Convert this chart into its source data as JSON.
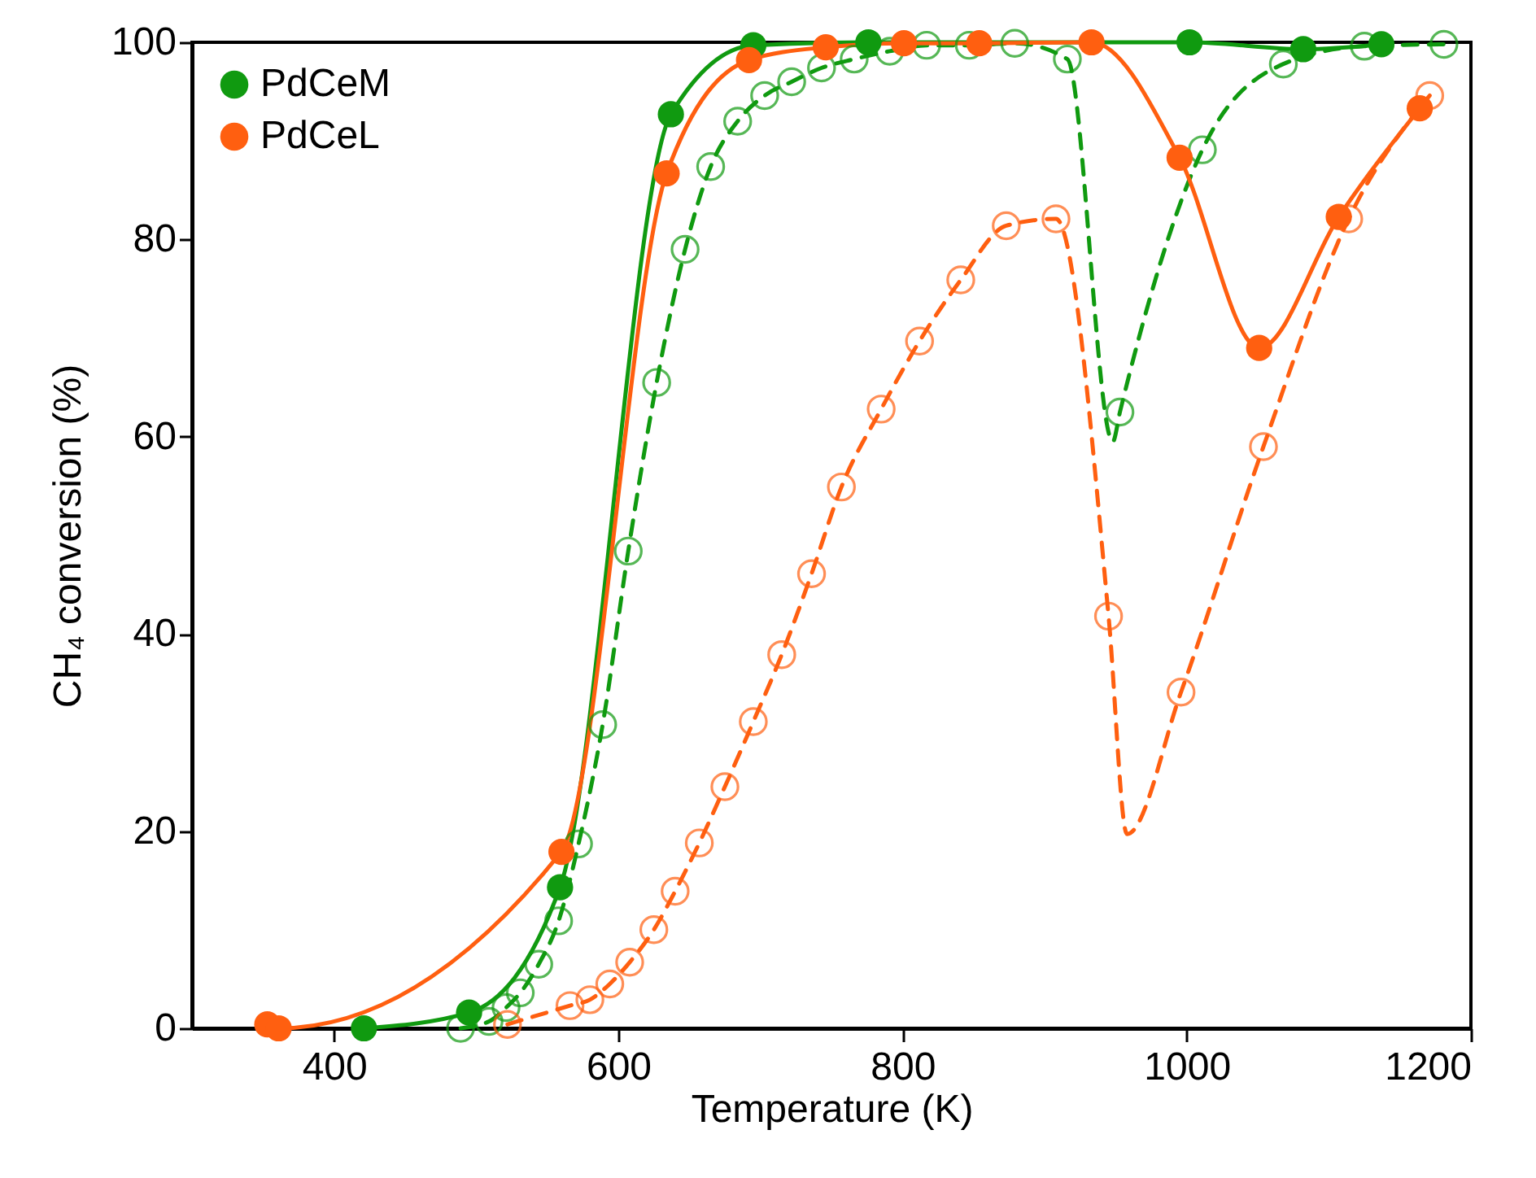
{
  "chart_data": {
    "type": "line",
    "xlabel": "Temperature (K)",
    "ylabel": "CH₄ conversion (%)",
    "xlim": [
      300,
      1200
    ],
    "ylim": [
      0,
      100
    ],
    "xticks": [
      400,
      600,
      800,
      1000,
      1200
    ],
    "yticks": [
      0,
      20,
      40,
      60,
      80,
      100
    ],
    "grid": false,
    "legend": "top left",
    "marker": "circle",
    "series": [
      {
        "type": "line",
        "color": "#109a10",
        "line_style": "dashed",
        "marker": "none",
        "x": [
          489,
          509,
          521,
          531,
          544,
          558,
          572,
          589,
          607,
          627,
          647,
          665,
          684,
          703,
          722,
          743,
          766,
          791,
          817,
          847,
          879,
          916,
          948,
          953,
          1011,
          1068,
          1125,
          1181
        ],
        "values": [
          0,
          0.7,
          2.1,
          3.6,
          6.5,
          10.9,
          18.7,
          30.8,
          48.4,
          65.5,
          79,
          87.4,
          92,
          94.6,
          96,
          97.4,
          98.3,
          99.1,
          99.7,
          99.7,
          99.9,
          98.3,
          59.5,
          62.5,
          89.1,
          97.8,
          99.6,
          99.8
        ]
      },
      {
        "type": "scatter",
        "color": "#109a10",
        "x": [
          489,
          509,
          521,
          531,
          544,
          558,
          572,
          589,
          607,
          627,
          647,
          665,
          684,
          703,
          722,
          743,
          766,
          791,
          817,
          847,
          879,
          916,
          953,
          1011,
          1068,
          1125,
          1181
        ],
        "values": [
          0,
          0.7,
          2.1,
          3.6,
          6.5,
          10.9,
          18.7,
          30.8,
          48.4,
          65.5,
          79,
          87.4,
          92,
          94.6,
          96,
          97.4,
          98.3,
          99.1,
          99.7,
          99.7,
          99.9,
          98.3,
          62.5,
          89.1,
          97.8,
          99.6,
          99.8
        ]
      },
      {
        "type": "line",
        "color": "#ff5f10",
        "line_style": "dashed",
        "marker": "none",
        "x": [
          522,
          566,
          580,
          594,
          608,
          625,
          640,
          657,
          675,
          695,
          715,
          736,
          757,
          785,
          812,
          841,
          873,
          908,
          945,
          958,
          996,
          1054,
          1114,
          1171
        ],
        "values": [
          0.4,
          2.3,
          2.9,
          4.5,
          6.7,
          10,
          13.9,
          18.8,
          24.5,
          31.1,
          37.9,
          46.1,
          54.9,
          62.8,
          69.7,
          75.9,
          81.4,
          82.1,
          41.8,
          19.7,
          34.1,
          59,
          82.1,
          94.6
        ]
      },
      {
        "type": "scatter",
        "color": "#ff5f10",
        "x": [
          522,
          566,
          580,
          594,
          608,
          625,
          640,
          657,
          675,
          695,
          715,
          736,
          757,
          785,
          812,
          841,
          873,
          908,
          945,
          996,
          1054,
          1114,
          1171
        ],
        "values": [
          0.4,
          2.3,
          2.9,
          4.5,
          6.7,
          10,
          13.9,
          18.8,
          24.5,
          31.1,
          37.9,
          46.1,
          54.9,
          62.8,
          69.7,
          75.9,
          81.4,
          82.1,
          41.8,
          34.1,
          59,
          82.1,
          94.6
        ]
      },
      {
        "type": "line",
        "name": "PdCeM",
        "color": "#109a10",
        "line_style": "solid",
        "x": [
          421,
          495,
          559,
          637,
          695,
          776,
          1002,
          1082,
          1137
        ],
        "values": [
          0,
          1.6,
          14.3,
          92.7,
          99.7,
          100,
          100,
          99.3,
          99.8
        ]
      },
      {
        "type": "line",
        "name": "PdCeL",
        "color": "#ff5f10",
        "line_style": "solid",
        "x": [
          353,
          361,
          560,
          634,
          692,
          746,
          801,
          854,
          933,
          995,
          1051,
          1107,
          1164
        ],
        "values": [
          0.4,
          0,
          17.9,
          86.7,
          98.2,
          99.5,
          99.9,
          99.9,
          100,
          88.3,
          69,
          82.3,
          93.3
        ]
      }
    ]
  }
}
